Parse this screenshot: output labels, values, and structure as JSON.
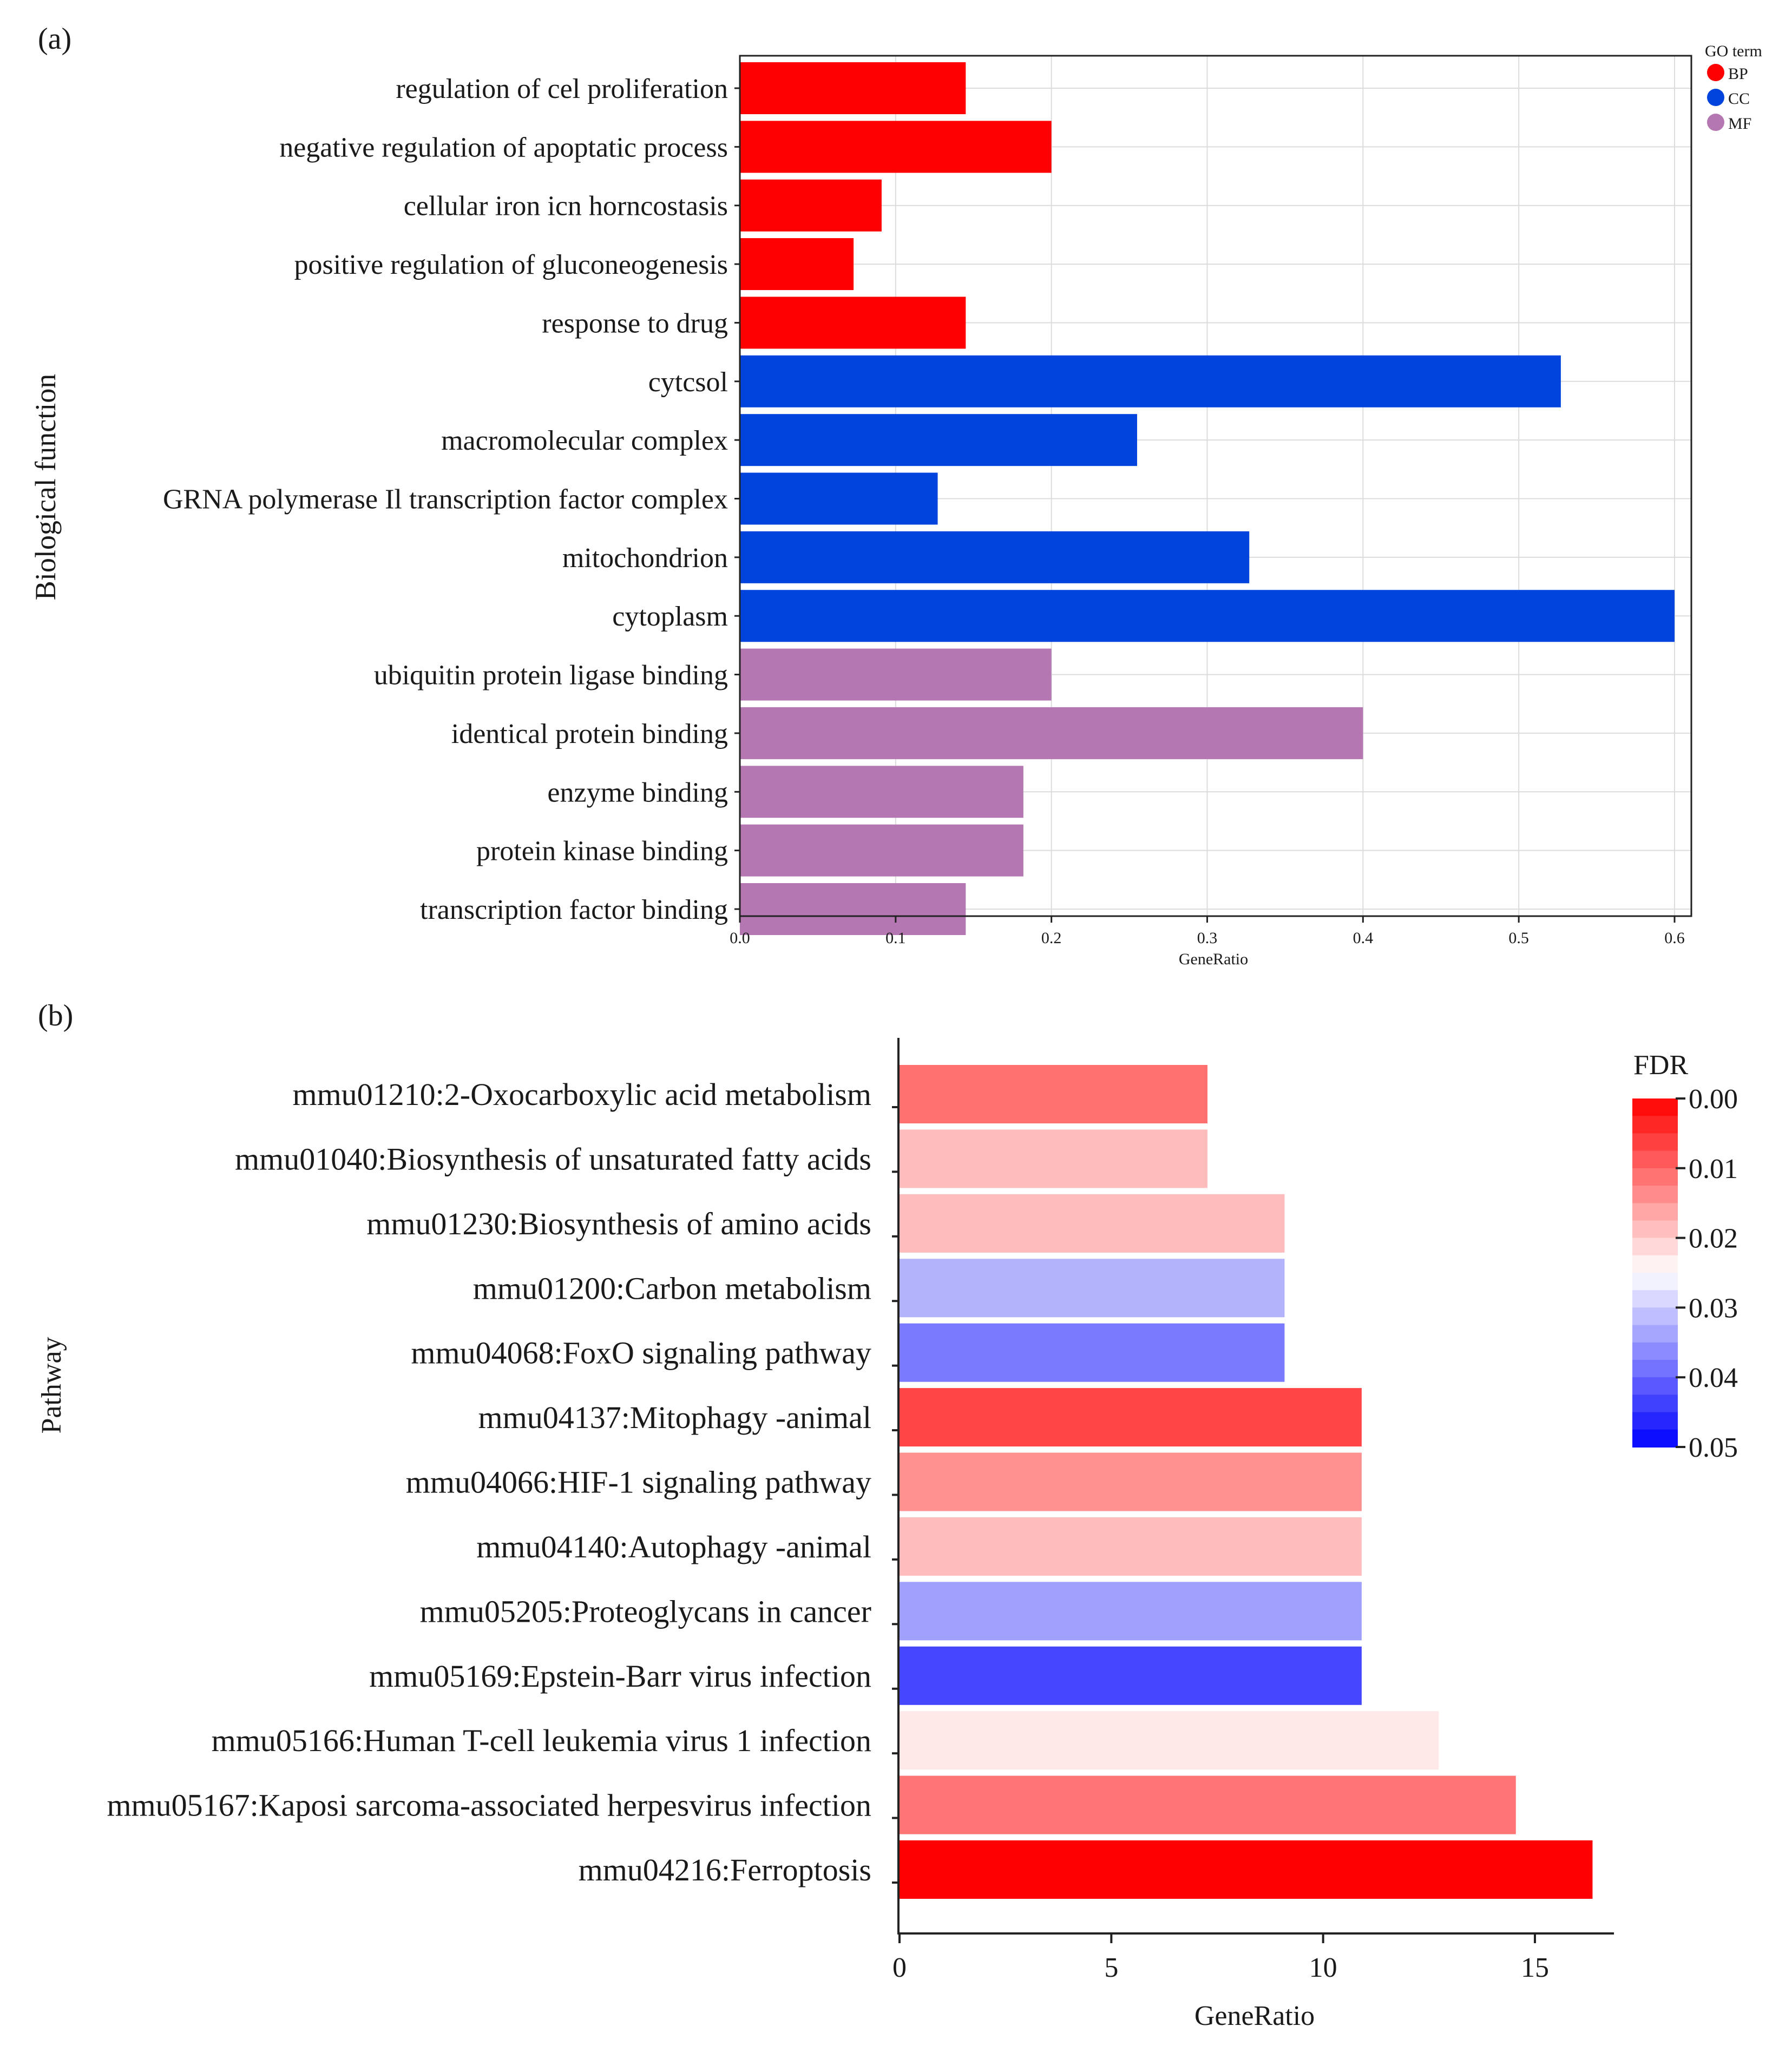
{
  "chart_data": [
    {
      "panel_label": "(a)",
      "type": "bar",
      "orientation": "horizontal",
      "xlabel": "GeneRatio",
      "ylabel": "Biological function",
      "xlim": [
        0,
        0.61
      ],
      "xticks": [
        0.0,
        0.1,
        0.2,
        0.3,
        0.4,
        0.5,
        0.6
      ],
      "xtick_labels": [
        "0.0",
        "0.1",
        "0.2",
        "0.3",
        "0.4",
        "0.5",
        "0.6"
      ],
      "grid": true,
      "legend": {
        "title": "GO term",
        "position": "top-right",
        "entries": [
          {
            "name": "BP",
            "color": "#ff0000"
          },
          {
            "name": "CC",
            "color": "#0044dd"
          },
          {
            "name": "MF",
            "color": "#b577b1"
          }
        ]
      },
      "categories": [
        "regulation of cel proliferation",
        "negative regulation of apoptatic process",
        "cellular iron icn horncostasis",
        "positive regulation of gluconeogenesis",
        "response to drug",
        "cytcsol",
        "macromolecular complex",
        "GRNA polymerase Il transcription factor complex",
        "mitochondrion",
        "cytoplasm",
        "ubiquitin protein ligase binding",
        "identical protein binding",
        "enzyme binding",
        "protein kinase binding",
        "transcription factor binding"
      ],
      "values": [
        0.145,
        0.2,
        0.091,
        0.073,
        0.145,
        0.527,
        0.255,
        0.127,
        0.327,
        0.6,
        0.2,
        0.4,
        0.182,
        0.182,
        0.145
      ],
      "groups": [
        "BP",
        "BP",
        "BP",
        "BP",
        "BP",
        "CC",
        "CC",
        "CC",
        "CC",
        "CC",
        "MF",
        "MF",
        "MF",
        "MF",
        "MF"
      ]
    },
    {
      "panel_label": "(b)",
      "type": "bar",
      "orientation": "horizontal",
      "xlabel": "GeneRatio",
      "ylabel": "Pathway",
      "xlim": [
        0,
        16.8
      ],
      "xticks": [
        0,
        5,
        10,
        15
      ],
      "xtick_labels": [
        "0",
        "5",
        "10",
        "15"
      ],
      "grid": false,
      "colorbar": {
        "title": "FDR",
        "position": "top-right",
        "range": [
          0.0,
          0.05
        ],
        "tick_values": [
          0.0,
          0.01,
          0.02,
          0.03,
          0.04,
          0.05
        ],
        "tick_labels": [
          "0.00",
          "0.01",
          "0.02",
          "0.03",
          "0.04",
          "0.05"
        ],
        "low_color": "#ff0000",
        "mid_color": "#ffffff",
        "high_color": "#0000ff"
      },
      "categories": [
        "mmu01210:2-Oxocarboxylic acid metabolism",
        "mmu01040:Biosynthesis of unsaturated fatty acids",
        "mmu01230:Biosynthesis of amino acids",
        "mmu01200:Carbon metabolism",
        "mmu04068:FoxO signaling pathway",
        "mmu04137:Mitophagy -animal",
        "mmu04066:HIF-1 signaling pathway",
        "mmu04140:Autophagy -animal",
        "mmu05205:Proteoglycans in cancer",
        "mmu05169:Epstein-Barr virus infection",
        "mmu05166:Human T-cell leukemia virus 1 infection",
        "mmu05167:Kaposi sarcoma-associated herpesvirus infection",
        "mmu04216:Ferroptosis"
      ],
      "values": [
        7.27,
        7.27,
        9.09,
        9.09,
        9.09,
        10.91,
        10.91,
        10.91,
        10.91,
        10.91,
        12.73,
        14.55,
        16.36
      ],
      "fdr": [
        0.008,
        0.016,
        0.016,
        0.035,
        0.041,
        0.005,
        0.011,
        0.016,
        0.034,
        0.045,
        0.021,
        0.009,
        0.0
      ],
      "fill_colors": [
        "#ff7070",
        "#ffbcbc",
        "#ffbcbc",
        "#b3b3fb",
        "#7a7aff",
        "#ff4545",
        "#ff9090",
        "#ffbcbc",
        "#a0a0fd",
        "#4646ff",
        "#ffe8e8",
        "#ff7575",
        "#ff0000"
      ]
    }
  ]
}
